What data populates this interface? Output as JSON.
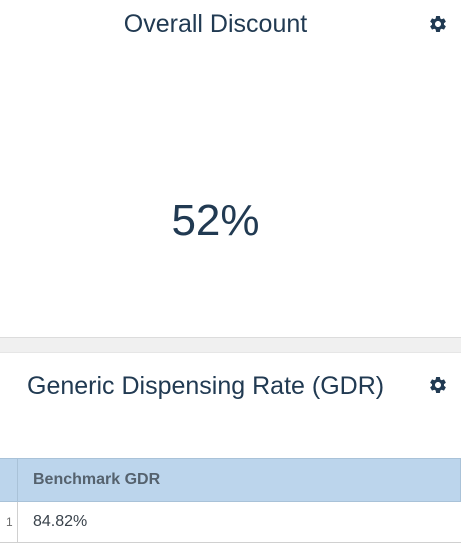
{
  "overall_discount": {
    "title": "Overall Discount",
    "value": "52%",
    "settings_icon": "gear-icon"
  },
  "gdr": {
    "title": "Generic Dispensing Rate (GDR)",
    "settings_icon": "gear-icon",
    "table": {
      "columns": [
        "Benchmark GDR"
      ],
      "rows": [
        {
          "index": "1",
          "values": [
            "84.82%"
          ]
        }
      ]
    }
  },
  "colors": {
    "text": "#213a52",
    "table_header_bg": "#bcd5ec",
    "separator_bg": "#f0f0f0"
  }
}
